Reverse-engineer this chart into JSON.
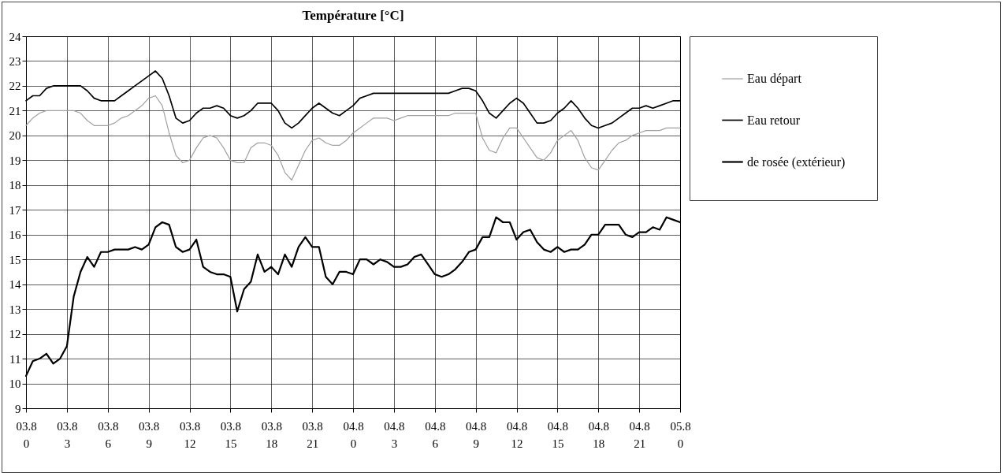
{
  "chart_data": {
    "type": "line",
    "title": "Température [°C]",
    "legend": "right",
    "grid": true,
    "line_style": "solid",
    "marker": "none",
    "categories": [
      "03.8 0",
      null,
      null,
      null,
      null,
      null,
      "03.8 3",
      null,
      null,
      null,
      null,
      null,
      "03.8 6",
      null,
      null,
      null,
      null,
      null,
      "03.8 9",
      null,
      null,
      null,
      null,
      null,
      "03.8 12",
      null,
      null,
      null,
      null,
      null,
      "03.8 15",
      null,
      null,
      null,
      null,
      null,
      "03.8 18",
      null,
      null,
      null,
      null,
      null,
      "03.8 21",
      null,
      null,
      null,
      null,
      null,
      "04.8 0",
      null,
      null,
      null,
      null,
      null,
      "04.8 3",
      null,
      null,
      null,
      null,
      null,
      "04.8 6",
      null,
      null,
      null,
      null,
      null,
      "04.8 9",
      null,
      null,
      null,
      null,
      null,
      "04.8 12",
      null,
      null,
      null,
      null,
      null,
      "04.8 15",
      null,
      null,
      null,
      null,
      null,
      "04.8 18",
      null,
      null,
      null,
      null,
      null,
      "04.8 21",
      null,
      null,
      null,
      null,
      null,
      "05.8 0"
    ],
    "ylim": [
      9,
      24
    ],
    "yticks": [
      9,
      10,
      11,
      12,
      13,
      14,
      15,
      16,
      17,
      18,
      19,
      20,
      21,
      22,
      23,
      24
    ],
    "series": [
      {
        "name": "Eau départ",
        "color": "#a0a0a0",
        "values": [
          20.4,
          20.7,
          20.9,
          21.0,
          21.0,
          21.0,
          21.0,
          21.0,
          20.9,
          20.6,
          20.4,
          20.4,
          20.4,
          20.5,
          20.7,
          20.8,
          21.0,
          21.2,
          21.5,
          21.6,
          21.2,
          20.1,
          19.2,
          18.9,
          19.0,
          19.5,
          19.9,
          20.0,
          19.9,
          19.5,
          19.0,
          18.9,
          18.9,
          19.5,
          19.7,
          19.7,
          19.6,
          19.2,
          18.5,
          18.2,
          18.8,
          19.4,
          19.8,
          19.9,
          19.7,
          19.6,
          19.6,
          19.8,
          20.1,
          20.3,
          20.5,
          20.7,
          20.7,
          20.7,
          20.6,
          20.7,
          20.8,
          20.8,
          20.8,
          20.8,
          20.8,
          20.8,
          20.8,
          20.9,
          20.9,
          20.9,
          20.9,
          19.9,
          19.4,
          19.3,
          19.9,
          20.3,
          20.3,
          19.9,
          19.5,
          19.1,
          19.0,
          19.3,
          19.8,
          20.0,
          20.2,
          19.8,
          19.1,
          18.7,
          18.6,
          19.0,
          19.4,
          19.7,
          19.8,
          20.0,
          20.1,
          20.2,
          20.2,
          20.2,
          20.3,
          20.3,
          20.3
        ]
      },
      {
        "name": "Eau retour",
        "color": "#000000",
        "values": [
          21.4,
          21.6,
          21.6,
          21.9,
          22.0,
          22.0,
          22.0,
          22.0,
          22.0,
          21.8,
          21.5,
          21.4,
          21.4,
          21.4,
          21.6,
          21.8,
          22.0,
          22.2,
          22.4,
          22.6,
          22.3,
          21.6,
          20.7,
          20.5,
          20.6,
          20.9,
          21.1,
          21.1,
          21.2,
          21.1,
          20.8,
          20.7,
          20.8,
          21.0,
          21.3,
          21.3,
          21.3,
          21.0,
          20.5,
          20.3,
          20.5,
          20.8,
          21.1,
          21.3,
          21.1,
          20.9,
          20.8,
          21.0,
          21.2,
          21.5,
          21.6,
          21.7,
          21.7,
          21.7,
          21.7,
          21.7,
          21.7,
          21.7,
          21.7,
          21.7,
          21.7,
          21.7,
          21.7,
          21.8,
          21.9,
          21.9,
          21.8,
          21.4,
          20.9,
          20.7,
          21.0,
          21.3,
          21.5,
          21.3,
          20.9,
          20.5,
          20.5,
          20.6,
          20.9,
          21.1,
          21.4,
          21.1,
          20.7,
          20.4,
          20.3,
          20.4,
          20.5,
          20.7,
          20.9,
          21.1,
          21.1,
          21.2,
          21.1,
          21.2,
          21.3,
          21.4,
          21.4
        ]
      },
      {
        "name": "de rosée (extérieur)",
        "color": "#000000",
        "values": [
          10.3,
          10.9,
          11.0,
          11.2,
          10.8,
          11.0,
          11.5,
          13.5,
          14.5,
          15.1,
          14.7,
          15.3,
          15.3,
          15.4,
          15.4,
          15.4,
          15.5,
          15.4,
          15.6,
          16.3,
          16.5,
          16.4,
          15.5,
          15.3,
          15.4,
          15.8,
          14.7,
          14.5,
          14.4,
          14.4,
          14.3,
          12.9,
          13.8,
          14.1,
          15.2,
          14.5,
          14.7,
          14.4,
          15.2,
          14.7,
          15.5,
          15.9,
          15.5,
          15.5,
          14.3,
          14.0,
          14.5,
          14.5,
          14.4,
          15.0,
          15.0,
          14.8,
          15.0,
          14.9,
          14.7,
          14.7,
          14.8,
          15.1,
          15.2,
          14.8,
          14.4,
          14.3,
          14.4,
          14.6,
          14.9,
          15.3,
          15.4,
          15.9,
          15.9,
          16.7,
          16.5,
          16.5,
          15.8,
          16.1,
          16.2,
          15.7,
          15.4,
          15.3,
          15.5,
          15.3,
          15.4,
          15.4,
          15.6,
          16.0,
          16.0,
          16.4,
          16.4,
          16.4,
          16.0,
          15.9,
          16.1,
          16.1,
          16.3,
          16.2,
          16.7,
          16.6,
          16.5
        ]
      }
    ]
  }
}
